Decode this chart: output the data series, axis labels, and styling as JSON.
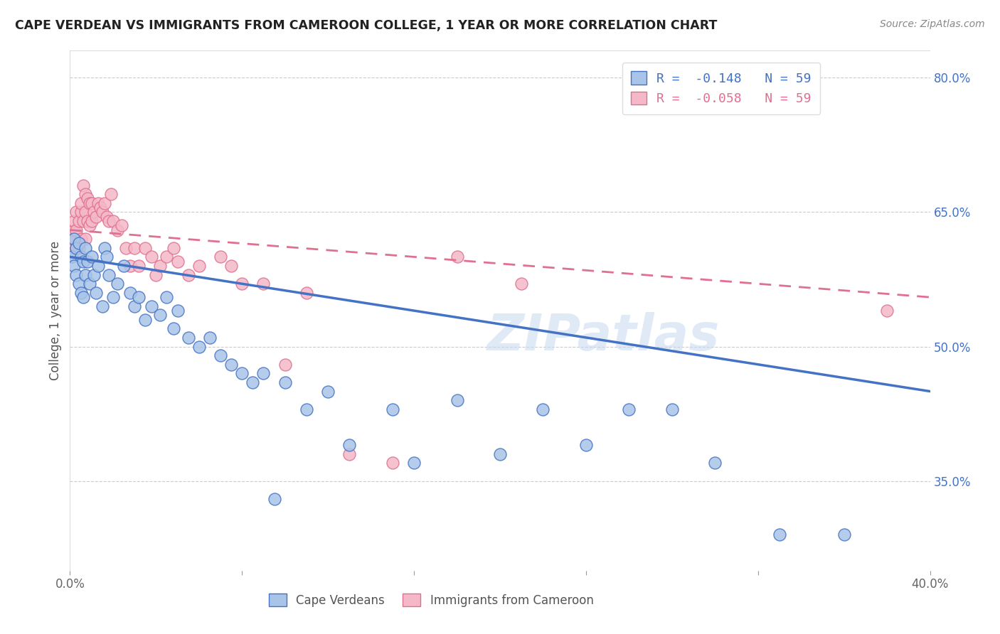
{
  "title": "CAPE VERDEAN VS IMMIGRANTS FROM CAMEROON COLLEGE, 1 YEAR OR MORE CORRELATION CHART",
  "source": "Source: ZipAtlas.com",
  "ylabel": "College, 1 year or more",
  "xmin": 0.0,
  "xmax": 0.4,
  "ymin": 0.25,
  "ymax": 0.83,
  "xticks": [
    0.0,
    0.08,
    0.16,
    0.24,
    0.32,
    0.4
  ],
  "xtick_labels": [
    "0.0%",
    "",
    "",
    "",
    "",
    "40.0%"
  ],
  "yticks_right": [
    0.35,
    0.5,
    0.65,
    0.8
  ],
  "ytick_right_labels": [
    "35.0%",
    "50.0%",
    "65.0%",
    "80.0%"
  ],
  "blue_color": "#a8c4e8",
  "blue_edge_color": "#4472c4",
  "blue_line_color": "#4472c4",
  "pink_color": "#f4b8c8",
  "pink_edge_color": "#e07090",
  "pink_line_color": "#e07090",
  "R_blue": -0.148,
  "N_blue": 59,
  "R_pink": -0.058,
  "N_pink": 59,
  "legend_label_blue": "R =  -0.148   N = 59",
  "legend_label_pink": "R =  -0.058   N = 59",
  "bottom_label_blue": "Cape Verdeans",
  "bottom_label_pink": "Immigrants from Cameroon",
  "watermark": "ZIPatlas",
  "bg_color": "#ffffff",
  "grid_color": "#cccccc",
  "scatter_blue_x": [
    0.001,
    0.002,
    0.002,
    0.003,
    0.003,
    0.004,
    0.004,
    0.005,
    0.005,
    0.006,
    0.006,
    0.007,
    0.007,
    0.008,
    0.009,
    0.01,
    0.011,
    0.012,
    0.013,
    0.015,
    0.016,
    0.017,
    0.018,
    0.02,
    0.022,
    0.025,
    0.028,
    0.03,
    0.032,
    0.035,
    0.038,
    0.042,
    0.045,
    0.048,
    0.05,
    0.055,
    0.06,
    0.065,
    0.07,
    0.075,
    0.08,
    0.085,
    0.09,
    0.095,
    0.1,
    0.11,
    0.12,
    0.13,
    0.15,
    0.16,
    0.18,
    0.2,
    0.22,
    0.24,
    0.26,
    0.28,
    0.3,
    0.33,
    0.36
  ],
  "scatter_blue_y": [
    0.6,
    0.59,
    0.62,
    0.61,
    0.58,
    0.615,
    0.57,
    0.6,
    0.56,
    0.595,
    0.555,
    0.61,
    0.58,
    0.595,
    0.57,
    0.6,
    0.58,
    0.56,
    0.59,
    0.545,
    0.61,
    0.6,
    0.58,
    0.555,
    0.57,
    0.59,
    0.56,
    0.545,
    0.555,
    0.53,
    0.545,
    0.535,
    0.555,
    0.52,
    0.54,
    0.51,
    0.5,
    0.51,
    0.49,
    0.48,
    0.47,
    0.46,
    0.47,
    0.33,
    0.46,
    0.43,
    0.45,
    0.39,
    0.43,
    0.37,
    0.44,
    0.38,
    0.43,
    0.39,
    0.43,
    0.43,
    0.37,
    0.29,
    0.29
  ],
  "scatter_pink_x": [
    0.001,
    0.001,
    0.002,
    0.002,
    0.003,
    0.003,
    0.003,
    0.004,
    0.004,
    0.005,
    0.005,
    0.005,
    0.006,
    0.006,
    0.007,
    0.007,
    0.007,
    0.008,
    0.008,
    0.009,
    0.009,
    0.01,
    0.01,
    0.011,
    0.012,
    0.013,
    0.014,
    0.015,
    0.016,
    0.017,
    0.018,
    0.019,
    0.02,
    0.022,
    0.024,
    0.026,
    0.028,
    0.03,
    0.032,
    0.035,
    0.038,
    0.04,
    0.042,
    0.045,
    0.048,
    0.05,
    0.055,
    0.06,
    0.07,
    0.075,
    0.08,
    0.09,
    0.1,
    0.11,
    0.13,
    0.15,
    0.18,
    0.21,
    0.38
  ],
  "scatter_pink_y": [
    0.62,
    0.6,
    0.63,
    0.64,
    0.65,
    0.63,
    0.61,
    0.64,
    0.61,
    0.65,
    0.66,
    0.62,
    0.68,
    0.64,
    0.67,
    0.65,
    0.62,
    0.665,
    0.64,
    0.66,
    0.635,
    0.66,
    0.64,
    0.65,
    0.645,
    0.66,
    0.655,
    0.65,
    0.66,
    0.645,
    0.64,
    0.67,
    0.64,
    0.63,
    0.635,
    0.61,
    0.59,
    0.61,
    0.59,
    0.61,
    0.6,
    0.58,
    0.59,
    0.6,
    0.61,
    0.595,
    0.58,
    0.59,
    0.6,
    0.59,
    0.57,
    0.57,
    0.48,
    0.56,
    0.38,
    0.37,
    0.6,
    0.57,
    0.54
  ],
  "blue_line_x": [
    0.0,
    0.4
  ],
  "blue_line_y": [
    0.6,
    0.45
  ],
  "pink_line_x": [
    0.0,
    0.4
  ],
  "pink_line_y": [
    0.63,
    0.555
  ]
}
